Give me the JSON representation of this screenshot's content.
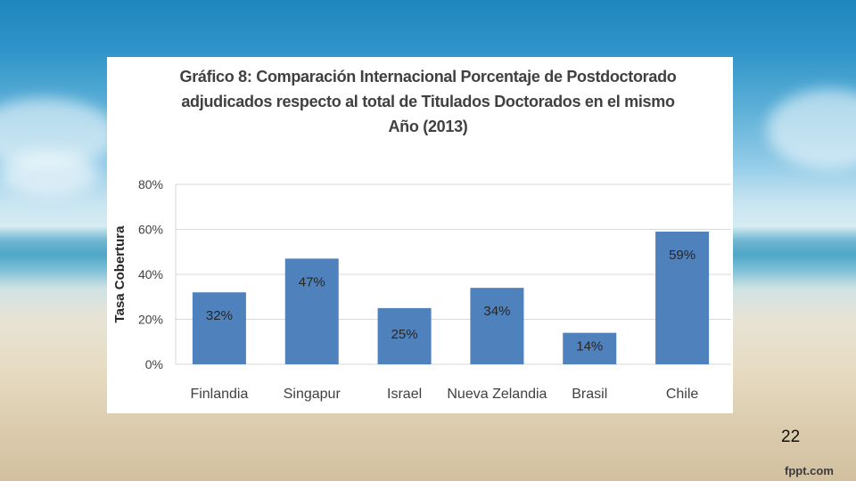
{
  "slide": {
    "page_number": "22",
    "watermark": "fppt.com"
  },
  "chart_data": {
    "type": "bar",
    "title_lines": [
      "Gráfico 8: Comparación Internacional Porcentaje de Postdoctorado",
      "adjudicados respecto al total de Titulados  Doctorados en el mismo",
      "Año (2013)"
    ],
    "ylabel": "Tasa Cobertura",
    "xlabel": "",
    "categories": [
      "Finlandia",
      "Singapur",
      "Israel",
      "Nueva Zelandia",
      "Brasil",
      "Chile"
    ],
    "values": [
      32,
      47,
      25,
      34,
      14,
      59
    ],
    "data_labels": [
      "32%",
      "47%",
      "25%",
      "34%",
      "14%",
      "59%"
    ],
    "yticks": [
      "0%",
      "20%",
      "40%",
      "60%",
      "80%"
    ],
    "ylim": [
      0,
      80
    ],
    "grid": true,
    "bar_color": "#4f81bd"
  }
}
